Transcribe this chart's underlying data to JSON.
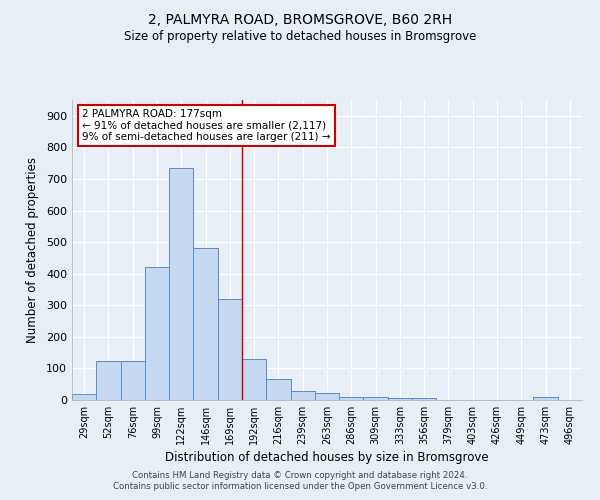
{
  "title1": "2, PALMYRA ROAD, BROMSGROVE, B60 2RH",
  "title2": "Size of property relative to detached houses in Bromsgrove",
  "xlabel": "Distribution of detached houses by size in Bromsgrove",
  "ylabel": "Number of detached properties",
  "annotation_line1": "2 PALMYRA ROAD: 177sqm",
  "annotation_line2": "← 91% of detached houses are smaller (2,117)",
  "annotation_line3": "9% of semi-detached houses are larger (211) →",
  "footnote1": "Contains HM Land Registry data © Crown copyright and database right 2024.",
  "footnote2": "Contains public sector information licensed under the Open Government Licence v3.0.",
  "bar_labels": [
    "29sqm",
    "52sqm",
    "76sqm",
    "99sqm",
    "122sqm",
    "146sqm",
    "169sqm",
    "192sqm",
    "216sqm",
    "239sqm",
    "263sqm",
    "286sqm",
    "309sqm",
    "333sqm",
    "356sqm",
    "379sqm",
    "403sqm",
    "426sqm",
    "449sqm",
    "473sqm",
    "496sqm"
  ],
  "bar_values": [
    20,
    125,
    125,
    420,
    735,
    480,
    320,
    130,
    65,
    28,
    22,
    8,
    8,
    5,
    5,
    0,
    0,
    0,
    0,
    10,
    0
  ],
  "bar_color": "#c5d8f0",
  "bar_edge_color": "#5b8ec4",
  "vline_x_bin": 7.0,
  "background_color": "#e8eef5",
  "grid_color": "#d0d8e4",
  "ylim": [
    0,
    950
  ],
  "yticks": [
    0,
    100,
    200,
    300,
    400,
    500,
    600,
    700,
    800,
    900
  ]
}
